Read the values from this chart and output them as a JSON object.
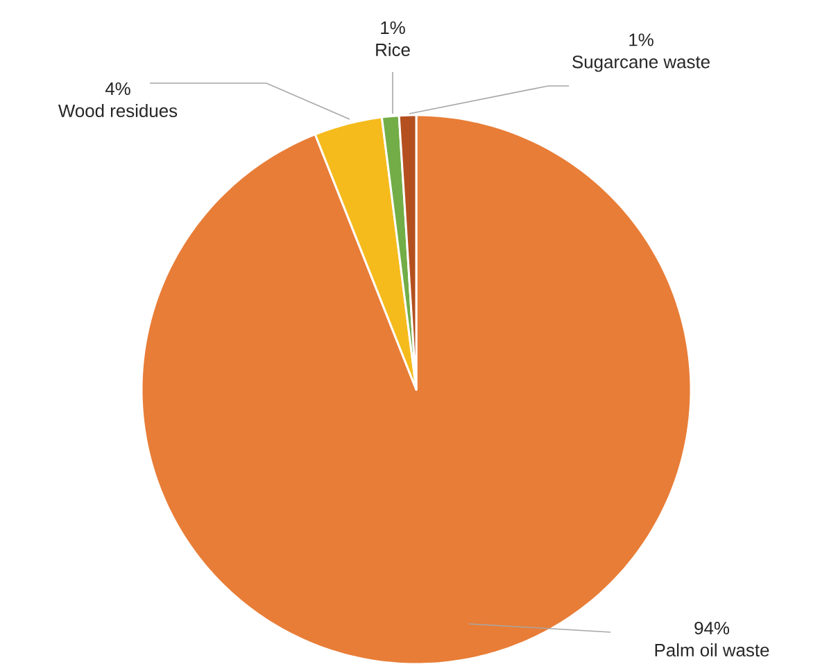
{
  "chart_data": {
    "type": "pie",
    "categories": [
      "Palm oil waste",
      "Wood residues",
      "Rice",
      "Sugarcane waste"
    ],
    "values": [
      94,
      4,
      1,
      1
    ],
    "colors": [
      "#e87d37",
      "#f5bb1d",
      "#72ad47",
      "#b4501f"
    ],
    "value_labels": [
      "94%",
      "4%",
      "1%",
      "1%"
    ]
  }
}
